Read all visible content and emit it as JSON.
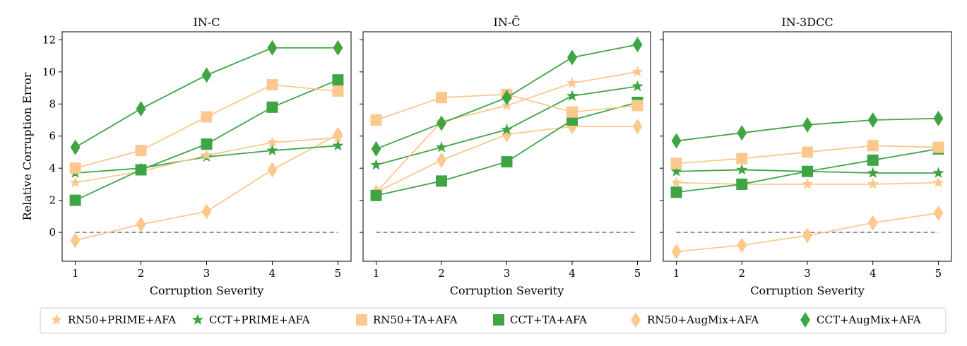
{
  "legend": [
    {
      "name": "RN50+PRIME+AFA",
      "color": "#fcc88d",
      "marker": "star"
    },
    {
      "name": "CCT+PRIME+AFA",
      "color": "#3fa444",
      "marker": "star"
    },
    {
      "name": "RN50+TA+AFA",
      "color": "#fcc88d",
      "marker": "square"
    },
    {
      "name": "CCT+TA+AFA",
      "color": "#3fa444",
      "marker": "square"
    },
    {
      "name": "RN50+AugMix+AFA",
      "color": "#fcc88d",
      "marker": "diamond"
    },
    {
      "name": "CCT+AugMix+AFA",
      "color": "#3fa444",
      "marker": "diamond"
    }
  ],
  "chart_data": [
    {
      "type": "line",
      "title": "IN-C",
      "xlabel": "Corruption Severity",
      "ylabel": "Relative Corruption Error",
      "x": [
        1,
        2,
        3,
        4,
        5
      ],
      "xticks": [
        "1",
        "2",
        "3",
        "4",
        "5"
      ],
      "yticks": [
        "0",
        "2",
        "4",
        "6",
        "8",
        "10",
        "12"
      ],
      "ylim": [
        -1.8,
        12.5
      ],
      "baseline": 0,
      "series": [
        {
          "name": "RN50+PRIME+AFA",
          "values": [
            3.1,
            3.8,
            4.8,
            5.6,
            5.9
          ]
        },
        {
          "name": "CCT+PRIME+AFA",
          "values": [
            3.7,
            4.0,
            4.7,
            5.1,
            5.4
          ]
        },
        {
          "name": "RN50+TA+AFA",
          "values": [
            4.0,
            5.1,
            7.2,
            9.2,
            8.8
          ]
        },
        {
          "name": "CCT+TA+AFA",
          "values": [
            2.0,
            3.9,
            5.5,
            7.8,
            9.5
          ]
        },
        {
          "name": "RN50+AugMix+AFA",
          "values": [
            -0.5,
            0.5,
            1.3,
            3.9,
            6.1
          ]
        },
        {
          "name": "CCT+AugMix+AFA",
          "values": [
            5.3,
            7.7,
            9.8,
            11.5,
            11.5
          ]
        }
      ]
    },
    {
      "type": "line",
      "title": "IN-C̄",
      "xlabel": "Corruption Severity",
      "ylabel": "",
      "x": [
        1,
        2,
        3,
        4,
        5
      ],
      "xticks": [
        "1",
        "2",
        "3",
        "4",
        "5"
      ],
      "ylim": [
        -1.8,
        12.5
      ],
      "baseline": 0,
      "series": [
        {
          "name": "RN50+PRIME+AFA",
          "values": [
            2.5,
            6.9,
            7.9,
            9.3,
            10.0
          ]
        },
        {
          "name": "CCT+PRIME+AFA",
          "values": [
            4.2,
            5.3,
            6.4,
            8.5,
            9.1
          ]
        },
        {
          "name": "RN50+TA+AFA",
          "values": [
            7.0,
            8.4,
            8.6,
            7.5,
            7.9
          ]
        },
        {
          "name": "CCT+TA+AFA",
          "values": [
            2.3,
            3.2,
            4.4,
            7.0,
            8.1
          ]
        },
        {
          "name": "RN50+AugMix+AFA",
          "values": [
            2.5,
            4.5,
            6.1,
            6.6,
            6.6
          ]
        },
        {
          "name": "CCT+AugMix+AFA",
          "values": [
            5.2,
            6.8,
            8.4,
            10.9,
            11.7
          ]
        }
      ]
    },
    {
      "type": "line",
      "title": "IN-3DCC",
      "xlabel": "Corruption Severity",
      "ylabel": "",
      "x": [
        1,
        2,
        3,
        4,
        5
      ],
      "xticks": [
        "1",
        "2",
        "3",
        "4",
        "5"
      ],
      "ylim": [
        -1.8,
        12.5
      ],
      "baseline": 0,
      "series": [
        {
          "name": "RN50+PRIME+AFA",
          "values": [
            3.1,
            3.0,
            3.0,
            3.0,
            3.1
          ]
        },
        {
          "name": "CCT+PRIME+AFA",
          "values": [
            3.8,
            3.9,
            3.8,
            3.7,
            3.7
          ]
        },
        {
          "name": "RN50+TA+AFA",
          "values": [
            4.3,
            4.6,
            5.0,
            5.4,
            5.3
          ]
        },
        {
          "name": "CCT+TA+AFA",
          "values": [
            2.5,
            3.0,
            3.8,
            4.5,
            5.2
          ]
        },
        {
          "name": "RN50+AugMix+AFA",
          "values": [
            -1.2,
            -0.8,
            -0.2,
            0.6,
            1.2
          ]
        },
        {
          "name": "CCT+AugMix+AFA",
          "values": [
            5.7,
            6.2,
            6.7,
            7.0,
            7.1
          ]
        }
      ]
    }
  ]
}
